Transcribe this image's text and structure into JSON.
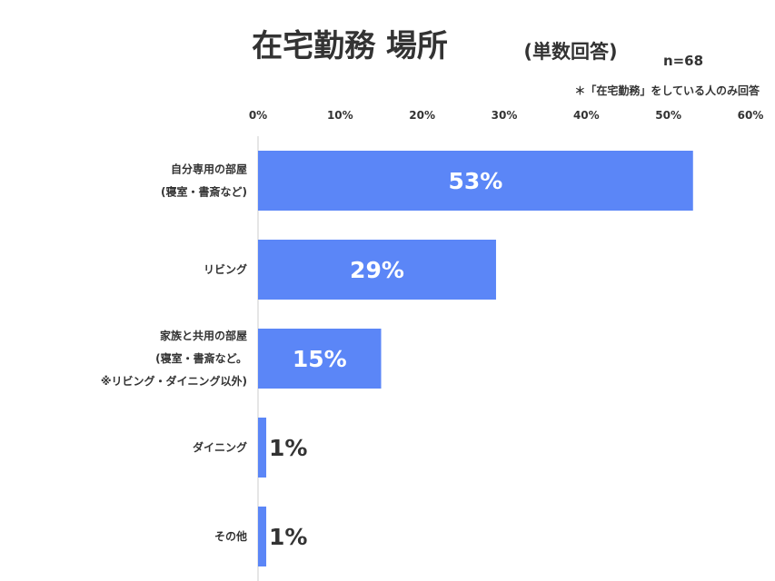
{
  "chart_data": {
    "type": "bar",
    "orientation": "horizontal",
    "title": "在宅勤務 場所",
    "subtitle": "(単数回答)",
    "sample_size": "n=68",
    "note": "＊「在宅勤務」をしている人のみ回答",
    "categories": [
      [
        "自分専用の部屋",
        "(寝室・書斎など)"
      ],
      [
        "リビング"
      ],
      [
        "家族と共用の部屋",
        "(寝室・書斎など。",
        "※リビング・ダイニング以外)"
      ],
      [
        "ダイニング"
      ],
      [
        "その他"
      ]
    ],
    "values": [
      53,
      29,
      15,
      1,
      1
    ],
    "data_labels": [
      "53%",
      "29%",
      "15%",
      "1%",
      "1%"
    ],
    "xlim": [
      0,
      60
    ],
    "xticks": [
      0,
      10,
      20,
      30,
      40,
      50,
      60
    ],
    "xtick_labels": [
      "0%",
      "10%",
      "20%",
      "30%",
      "40%",
      "50%",
      "60%"
    ],
    "axis_position": "top",
    "grid": false,
    "legend": "none",
    "bar_color": "#5b86f7"
  }
}
